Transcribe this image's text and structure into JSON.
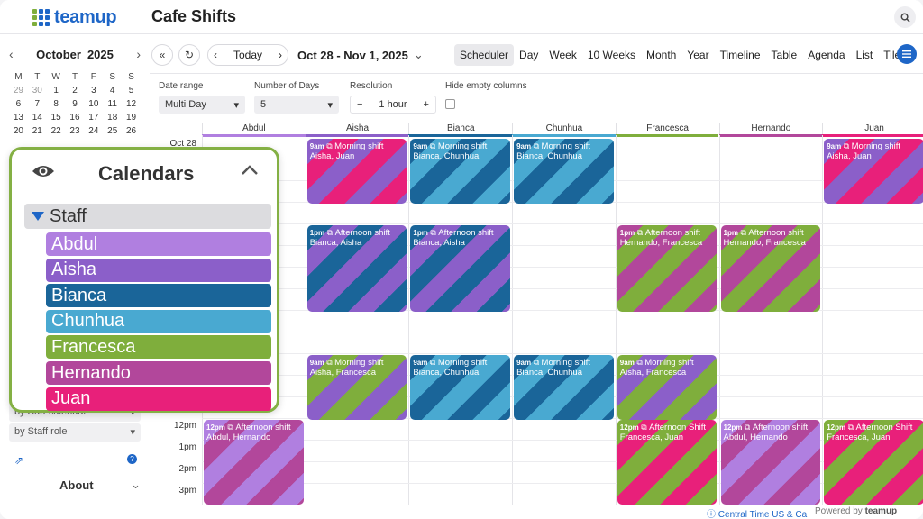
{
  "app": {
    "logo_text": "teamup",
    "title": "Cafe Shifts"
  },
  "mini_calendar": {
    "month": "October",
    "year": "2025",
    "dow": [
      "M",
      "T",
      "W",
      "T",
      "F",
      "S",
      "S"
    ],
    "weeks": [
      [
        "29",
        "30",
        "1",
        "2",
        "3",
        "4",
        "5"
      ],
      [
        "6",
        "7",
        "8",
        "9",
        "10",
        "11",
        "12"
      ],
      [
        "13",
        "14",
        "15",
        "16",
        "17",
        "18",
        "19"
      ],
      [
        "20",
        "21",
        "22",
        "23",
        "24",
        "25",
        "26"
      ]
    ]
  },
  "sidebar": {
    "view_by_calendar": "by Sub-calendar",
    "view_by_role": "by Staff role",
    "about_label": "About"
  },
  "calendars_panel": {
    "title": "Calendars",
    "group_label": "Staff",
    "items": [
      {
        "label": "Abdul",
        "color": "#b07fe0"
      },
      {
        "label": "Aisha",
        "color": "#8b5fc9"
      },
      {
        "label": "Bianca",
        "color": "#1a6599"
      },
      {
        "label": "Chunhua",
        "color": "#49a9d1"
      },
      {
        "label": "Francesca",
        "color": "#7fae3c"
      },
      {
        "label": "Hernando",
        "color": "#b2479b"
      },
      {
        "label": "Juan",
        "color": "#e8207a"
      }
    ]
  },
  "toolbar": {
    "today_label": "Today",
    "date_range": "Oct 28 - Nov 1, 2025",
    "views": [
      "Scheduler",
      "Day",
      "Week",
      "10 Weeks",
      "Month",
      "Year",
      "Timeline",
      "Table",
      "Agenda",
      "List",
      "Tiles"
    ],
    "active_view": "Scheduler"
  },
  "filters": {
    "date_range_label": "Date range",
    "date_range_value": "Multi Day",
    "num_days_label": "Number of Days",
    "num_days_value": "5",
    "resolution_label": "Resolution",
    "resolution_value": "1 hour",
    "hide_empty_label": "Hide empty columns",
    "hide_empty_checked": false
  },
  "scheduler": {
    "date_label": "Oct 28",
    "columns": [
      {
        "label": "Abdul",
        "color": "#b07fe0"
      },
      {
        "label": "Aisha",
        "color": "#8b5fc9"
      },
      {
        "label": "Bianca",
        "color": "#1a6599"
      },
      {
        "label": "Chunhua",
        "color": "#49a9d1"
      },
      {
        "label": "Francesca",
        "color": "#7fae3c"
      },
      {
        "label": "Hernando",
        "color": "#b2479b"
      },
      {
        "label": "Juan",
        "color": "#e8207a"
      }
    ],
    "time_labels": [
      "12pm",
      "1pm",
      "2pm",
      "3pm"
    ],
    "events": [
      {
        "col": 1,
        "row": 0,
        "time": "9am",
        "title": "Morning shift",
        "people": "Aisha, Juan",
        "c1": "#8b5fc9",
        "c2": "#e8207a"
      },
      {
        "col": 2,
        "row": 0,
        "time": "9am",
        "title": "Morning shift",
        "people": "Bianca, Chunhua",
        "c1": "#1a6599",
        "c2": "#49a9d1"
      },
      {
        "col": 3,
        "row": 0,
        "time": "9am",
        "title": "Morning shift",
        "people": "Bianca, Chunhua",
        "c1": "#1a6599",
        "c2": "#49a9d1"
      },
      {
        "col": 6,
        "row": 0,
        "time": "9am",
        "title": "Morning shift",
        "people": "Aisha, Juan",
        "c1": "#8b5fc9",
        "c2": "#e8207a"
      },
      {
        "col": 1,
        "row": 1,
        "time": "1pm",
        "title": "Afternoon shift",
        "people": "Bianca, Aisha",
        "c1": "#1a6599",
        "c2": "#8b5fc9"
      },
      {
        "col": 2,
        "row": 1,
        "time": "1pm",
        "title": "Afternoon shift",
        "people": "Bianca, Aisha",
        "c1": "#1a6599",
        "c2": "#8b5fc9"
      },
      {
        "col": 4,
        "row": 1,
        "time": "1pm",
        "title": "Afternoon shift",
        "people": "Hernando, Francesca",
        "c1": "#b2479b",
        "c2": "#7fae3c"
      },
      {
        "col": 5,
        "row": 1,
        "time": "1pm",
        "title": "Afternoon shift",
        "people": "Hernando, Francesca",
        "c1": "#b2479b",
        "c2": "#7fae3c"
      },
      {
        "col": 1,
        "row": 2,
        "time": "9am",
        "title": "Morning shift",
        "people": "Aisha, Francesca",
        "c1": "#8b5fc9",
        "c2": "#7fae3c"
      },
      {
        "col": 2,
        "row": 2,
        "time": "9am",
        "title": "Morning shift",
        "people": "Bianca, Chunhua",
        "c1": "#1a6599",
        "c2": "#49a9d1"
      },
      {
        "col": 3,
        "row": 2,
        "time": "9am",
        "title": "Morning shift",
        "people": "Bianca, Chunhua",
        "c1": "#1a6599",
        "c2": "#49a9d1"
      },
      {
        "col": 4,
        "row": 2,
        "time": "9am",
        "title": "Morning shift",
        "people": "Aisha, Francesca",
        "c1": "#7fae3c",
        "c2": "#8b5fc9"
      },
      {
        "col": 0,
        "row": 3,
        "time": "12pm",
        "title": "Afternoon shift",
        "people": "Abdul, Hernando",
        "c1": "#b07fe0",
        "c2": "#b2479b"
      },
      {
        "col": 4,
        "row": 3,
        "time": "12pm",
        "title": "Afternoon Shift",
        "people": "Francesca, Juan",
        "c1": "#7fae3c",
        "c2": "#e8207a"
      },
      {
        "col": 5,
        "row": 3,
        "time": "12pm",
        "title": "Afternoon shift",
        "people": "Abdul, Hernando",
        "c1": "#b07fe0",
        "c2": "#b2479b"
      },
      {
        "col": 6,
        "row": 3,
        "time": "12pm",
        "title": "Afternoon Shift",
        "people": "Francesca, Juan",
        "c1": "#7fae3c",
        "c2": "#e8207a"
      }
    ]
  },
  "footer": {
    "timezone": "Central Time US & Ca",
    "powered_by": "Powered by",
    "brand": "teamup"
  },
  "colors": {
    "accent": "#1e66c7",
    "panel_border": "#84b044"
  }
}
